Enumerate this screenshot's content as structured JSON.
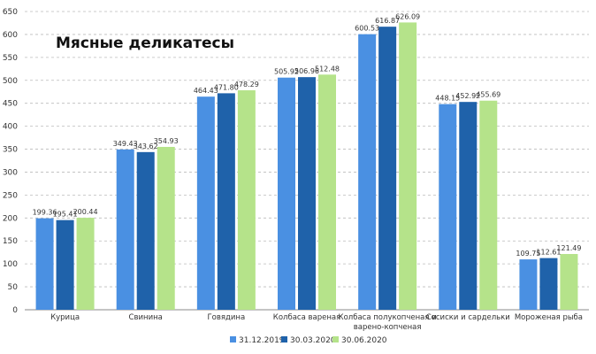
{
  "chart_data": {
    "type": "bar",
    "title": "Мясные деликатесы",
    "xlabel": "",
    "ylabel": "",
    "ylim": [
      0,
      650
    ],
    "yticks": [
      0,
      50,
      100,
      150,
      200,
      250,
      300,
      350,
      400,
      450,
      500,
      550,
      600,
      650
    ],
    "grid": true,
    "legend_position": "bottom",
    "categories": [
      [
        "Курица"
      ],
      [
        "Свинина"
      ],
      [
        "Говядина"
      ],
      [
        "Колбаса вареная"
      ],
      [
        "Колбаса полукопченая и",
        "варено-копченая"
      ],
      [
        "Сосиски и сардельки"
      ],
      [
        "Мороженая рыба"
      ]
    ],
    "series": [
      {
        "name": "31.12.2019",
        "color": "#4a90e2",
        "values": [
          199.36,
          349.43,
          464.43,
          505.92,
          600.53,
          448.15,
          109.75
        ]
      },
      {
        "name": "30.03.2020",
        "color": "#1f62aa",
        "values": [
          195.41,
          343.62,
          471.8,
          506.96,
          616.87,
          452.92,
          112.61
        ]
      },
      {
        "name": "30.06.2020",
        "color": "#b5e38a",
        "values": [
          200.44,
          354.93,
          478.29,
          512.48,
          626.09,
          455.69,
          121.49
        ]
      }
    ],
    "value_labels": [
      [
        "199.36",
        "349.43",
        "464.43",
        "505.92",
        "600.53",
        "448.15",
        "109.75"
      ],
      [
        "195.41",
        "343.62",
        "471.80",
        "506.96",
        "616.87",
        "452.92",
        "112.61"
      ],
      [
        "200.44",
        "354.93",
        "478.29",
        "512.48",
        "626.09",
        "455.69",
        "121.49"
      ]
    ]
  }
}
